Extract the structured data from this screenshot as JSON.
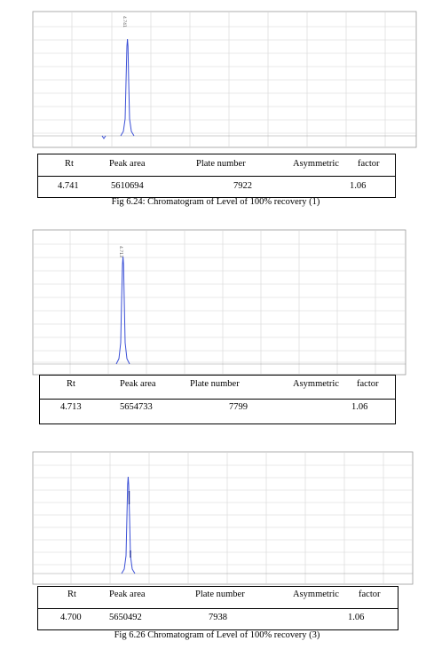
{
  "figures": [
    {
      "caption": "Fig 6.24: Chromatogram of Level of 100% recovery (1)",
      "peak_label": "4.741",
      "headers": {
        "rt": "Rt",
        "area": "Peak area",
        "plates": "Plate number",
        "asym": "Asymmetric",
        "factor": "factor"
      },
      "values": {
        "rt": "4.741",
        "area": "5610694",
        "plates": "7922",
        "asym": "1.06"
      }
    },
    {
      "caption": "",
      "peak_label": "4.713",
      "headers": {
        "rt": "Rt",
        "area": "Peak area",
        "plates": "Plate number",
        "asym": "Asymmetric",
        "factor": "factor"
      },
      "values": {
        "rt": "4.713",
        "area": "5654733",
        "plates": "7799",
        "asym": "1.06"
      }
    },
    {
      "caption": "Fig 6.26 Chromatogram of Level of 100% recovery (3)",
      "peak_label": "4.700",
      "headers": {
        "rt": "Rt",
        "area": "Peak area",
        "plates": "Plate number",
        "asym": "Asymmetric",
        "factor": "factor"
      },
      "values": {
        "rt": "4.700",
        "area": "5650492",
        "plates": "7938",
        "asym": "1.06"
      }
    }
  ],
  "colors": {
    "peak": "#3a4fd6",
    "grid": "#d6d6d6",
    "axis": "#9a9a9a",
    "border": "#000000"
  }
}
